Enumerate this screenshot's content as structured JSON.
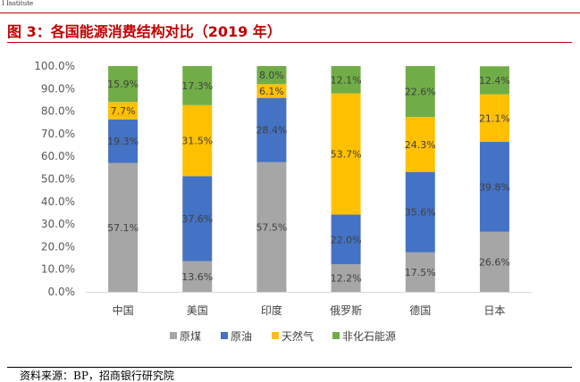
{
  "header": {
    "institute": "I   Institute"
  },
  "title": "图 3：各国能源消费结构对比（2019 年）",
  "source": "资料来源：BP，招商银行研究院",
  "chart_data": {
    "type": "bar",
    "stacked": true,
    "categories": [
      "中国",
      "美国",
      "印度",
      "俄罗斯",
      "德国",
      "日本"
    ],
    "yticks": [
      "0.0%",
      "10.0%",
      "20.0%",
      "30.0%",
      "40.0%",
      "50.0%",
      "60.0%",
      "70.0%",
      "80.0%",
      "90.0%",
      "100.0%"
    ],
    "ylim": [
      0,
      100
    ],
    "grid": false,
    "legend_position": "bottom",
    "series": [
      {
        "name": "原煤",
        "color": "#a6a6a6",
        "values": [
          57.1,
          13.6,
          57.5,
          12.2,
          17.5,
          26.6
        ],
        "labels": [
          "57.1%",
          "13.6%",
          "57.5%",
          "12.2%",
          "17.5%",
          "26.6%"
        ]
      },
      {
        "name": "原油",
        "color": "#4472c4",
        "values": [
          19.3,
          37.6,
          28.4,
          22.0,
          35.6,
          39.8
        ],
        "labels": [
          "19.3%",
          "37.6%",
          "28.4%",
          "22.0%",
          "35.6%",
          "39.8%"
        ]
      },
      {
        "name": "天然气",
        "color": "#ffc000",
        "values": [
          7.7,
          31.5,
          6.1,
          53.7,
          24.3,
          21.1
        ],
        "labels": [
          "7.7%",
          "31.5%",
          "6.1%",
          "53.7%",
          "24.3%",
          "21.1%"
        ]
      },
      {
        "name": "非化石能源",
        "color": "#70ad47",
        "values": [
          15.9,
          17.3,
          8.0,
          12.1,
          22.6,
          12.4
        ],
        "labels": [
          "15.9%",
          "17.3%",
          "8.0%",
          "12.1%",
          "22.6%",
          "12.4%"
        ]
      }
    ]
  }
}
